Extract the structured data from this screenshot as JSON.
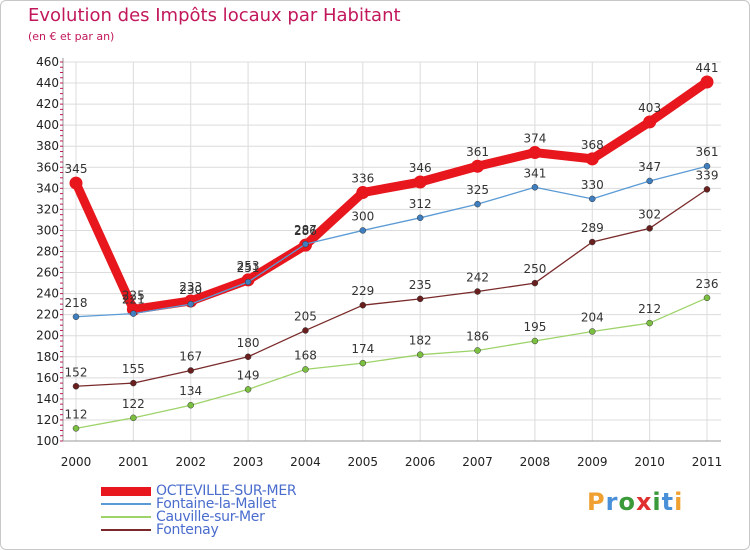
{
  "title": "Evolution des Impôts locaux par Habitant",
  "subtitle": "(en € et par an)",
  "brand": {
    "letters": [
      {
        "ch": "P",
        "color": "#f0a030"
      },
      {
        "ch": "r",
        "color": "#4a90d9"
      },
      {
        "ch": "o",
        "color": "#3a9a3a"
      },
      {
        "ch": "x",
        "color": "#e03030"
      },
      {
        "ch": "i",
        "color": "#3a9a3a"
      },
      {
        "ch": "t",
        "color": "#4a90d9"
      },
      {
        "ch": "i",
        "color": "#f0a030"
      }
    ]
  },
  "colors": {
    "axis_text": "#c2185b",
    "grid": "#dcdcdc"
  },
  "chart_data": {
    "type": "line",
    "title": "Evolution des Impôts locaux par Habitant",
    "subtitle": "(en € et par an)",
    "x": [
      "2000",
      "2001",
      "2002",
      "2003",
      "2004",
      "2005",
      "2006",
      "2007",
      "2008",
      "2009",
      "2010",
      "2011"
    ],
    "ylim": [
      100,
      460
    ],
    "yticks": [
      100,
      120,
      140,
      160,
      180,
      200,
      220,
      240,
      260,
      280,
      300,
      320,
      340,
      360,
      380,
      400,
      420,
      440,
      460
    ],
    "grid": true,
    "legend_position": "bottom-left",
    "series": [
      {
        "name": "OCTEVILLE-SUR-MER",
        "color": "#e8161d",
        "point_color": "#e8161d",
        "thick": true,
        "values": [
          345,
          225,
          233,
          253,
          286,
          336,
          346,
          361,
          374,
          368,
          403,
          441
        ],
        "labels": [
          "345",
          "225",
          "233",
          "253",
          "286",
          "336",
          "346",
          "361",
          "374",
          "368",
          "403",
          "441"
        ]
      },
      {
        "name": "Fontaine-la-Mallet",
        "color": "#5b9bd5",
        "point_color": "#3f7fc0",
        "thick": false,
        "values": [
          218,
          221,
          230,
          251,
          287,
          300,
          312,
          325,
          341,
          330,
          347,
          361
        ],
        "labels": [
          "218",
          "221",
          "230",
          "251",
          "287",
          "300",
          "312",
          "325",
          "341",
          "330",
          "347",
          "361"
        ]
      },
      {
        "name": "Cauville-sur-Mer",
        "color": "#9ed36a",
        "point_color": "#7cc042",
        "thick": false,
        "values": [
          112,
          122,
          134,
          149,
          168,
          174,
          182,
          186,
          195,
          204,
          212,
          236
        ],
        "labels": [
          "112",
          "122",
          "134",
          "149",
          "168",
          "174",
          "182",
          "186",
          "195",
          "204",
          "212",
          "236"
        ]
      },
      {
        "name": "Fontenay",
        "color": "#7a2a2a",
        "point_color": "#6a1f1f",
        "thick": false,
        "values": [
          152,
          155,
          167,
          180,
          205,
          229,
          235,
          242,
          250,
          289,
          302,
          339
        ],
        "labels": [
          "152",
          "155",
          "167",
          "180",
          "205",
          "229",
          "235",
          "242",
          "250",
          "289",
          "302",
          "339"
        ]
      }
    ]
  }
}
